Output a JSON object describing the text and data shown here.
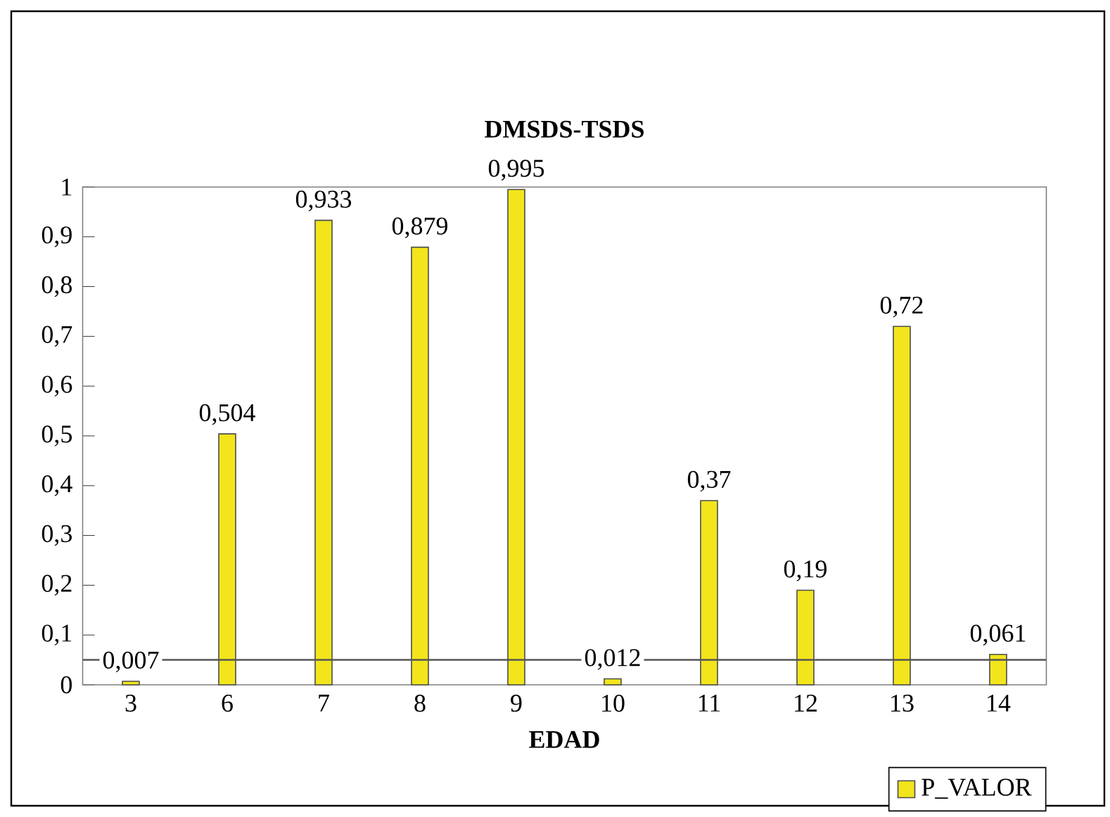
{
  "chart_data": {
    "type": "bar",
    "title": "DMSDS-TSDS",
    "xlabel": "EDAD",
    "categories": [
      "3",
      "6",
      "7",
      "8",
      "9",
      "10",
      "11",
      "12",
      "13",
      "14"
    ],
    "series": [
      {
        "name": "P_VALOR",
        "color": "#f2e51c",
        "values": [
          0.007,
          0.504,
          0.933,
          0.879,
          0.995,
          0.012,
          0.37,
          0.19,
          0.72,
          0.061
        ],
        "value_labels": [
          "0,007",
          "0,504",
          "0,933",
          "0,879",
          "0,995",
          "0,012",
          "0,37",
          "0,19",
          "0,72",
          "0,061"
        ]
      }
    ],
    "ylim": [
      0,
      1
    ],
    "yticks": [
      0,
      {
        "value": 0.1,
        "label": "0,1"
      },
      {
        "value": 0.2,
        "label": "0,2"
      },
      {
        "value": 0.3,
        "label": "0,3"
      },
      {
        "value": 0.4,
        "label": "0,4"
      },
      {
        "value": 0.5,
        "label": "0,5"
      },
      {
        "value": 0.6,
        "label": "0,6"
      },
      {
        "value": 0.7,
        "label": "0,7"
      },
      {
        "value": 0.8,
        "label": "0,8"
      },
      {
        "value": 0.9,
        "label": "0,9"
      },
      1
    ],
    "ref_lines": [
      {
        "axis": "y",
        "value": 0.05,
        "color": "#555555"
      }
    ],
    "grid": false,
    "legend": "bottom right"
  }
}
